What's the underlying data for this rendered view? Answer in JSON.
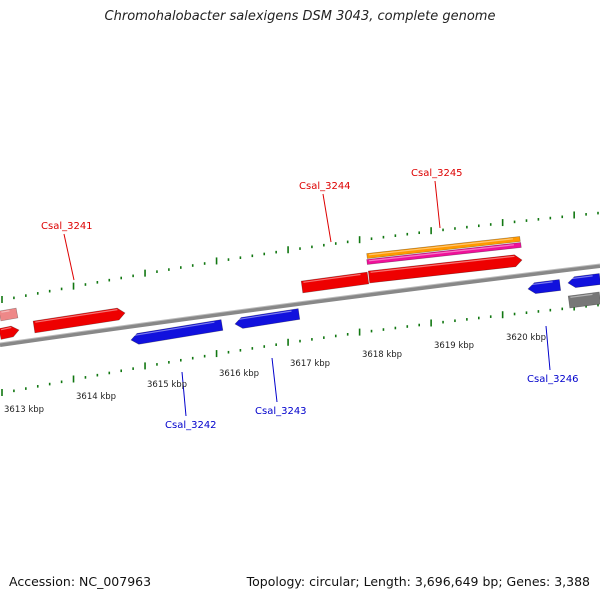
{
  "title": "Chromohalobacter salexigens DSM 3043, complete genome",
  "footer": {
    "accession": "Accession: NC_007963",
    "topology": "Topology: circular; Length: 3,696,649 bp; Genes: 3,388"
  },
  "colors": {
    "forward_gene": "#ee0000",
    "reverse_gene": "#1111dd",
    "backbone": "#888888",
    "tick": "#117711",
    "orange_feature": "#ff9900",
    "magenta_feature": "#ee1199",
    "pale_gene": "#ee8888",
    "grey_gene": "#777777"
  },
  "scale": {
    "tick_labels": [
      "3613 kbp",
      "3614 kbp",
      "3615 kbp",
      "3616 kbp",
      "3617 kbp",
      "3618 kbp",
      "3619 kbp",
      "3620 kbp"
    ]
  },
  "gene_labels": [
    {
      "name": "Csal_3241",
      "strand": "forward"
    },
    {
      "name": "Csal_3244",
      "strand": "forward"
    },
    {
      "name": "Csal_3245",
      "strand": "forward"
    },
    {
      "name": "Csal_3242",
      "strand": "reverse"
    },
    {
      "name": "Csal_3243",
      "strand": "reverse"
    },
    {
      "name": "Csal_3246",
      "strand": "reverse"
    }
  ]
}
